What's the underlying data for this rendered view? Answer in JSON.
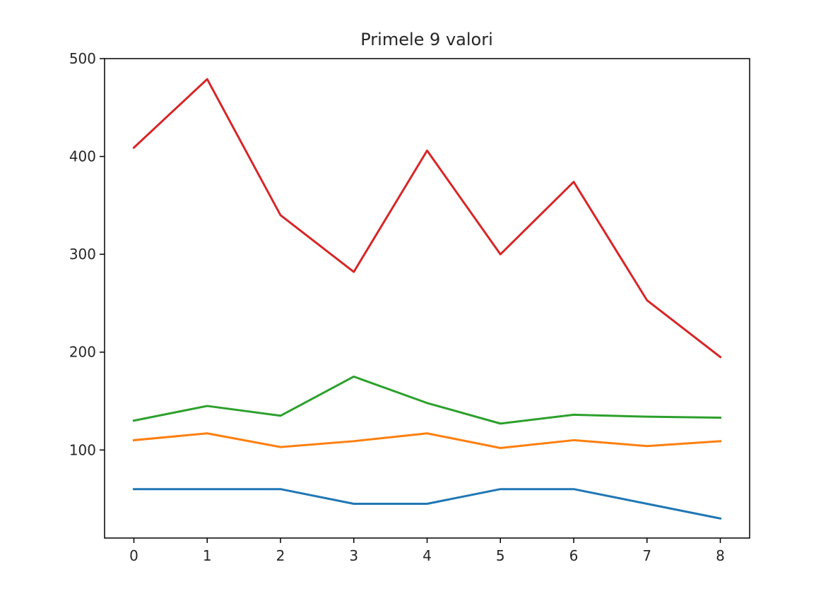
{
  "chart_data": {
    "type": "line",
    "title": "Primele 9 valori",
    "xlabel": "",
    "ylabel": "",
    "x": [
      0,
      1,
      2,
      3,
      4,
      5,
      6,
      7,
      8
    ],
    "xlim": [
      -0.4,
      8.4
    ],
    "ylim": [
      10,
      500
    ],
    "xticks": [
      "0",
      "1",
      "2",
      "3",
      "4",
      "5",
      "6",
      "7",
      "8"
    ],
    "yticks": [
      "100",
      "200",
      "300",
      "400",
      "500"
    ],
    "grid": false,
    "legend": "none",
    "series": [
      {
        "color": "#1f77b4",
        "values": [
          60,
          60,
          60,
          45,
          45,
          60,
          60,
          45,
          30
        ]
      },
      {
        "color": "#ff7f0e",
        "values": [
          110,
          117,
          103,
          109,
          117,
          102,
          110,
          104,
          109
        ]
      },
      {
        "color": "#2ca02c",
        "values": [
          130,
          145,
          135,
          175,
          148,
          127,
          136,
          134,
          133
        ]
      },
      {
        "color": "#d62728",
        "values": [
          409,
          479,
          340,
          282,
          406,
          300,
          374,
          253,
          195
        ]
      }
    ]
  }
}
